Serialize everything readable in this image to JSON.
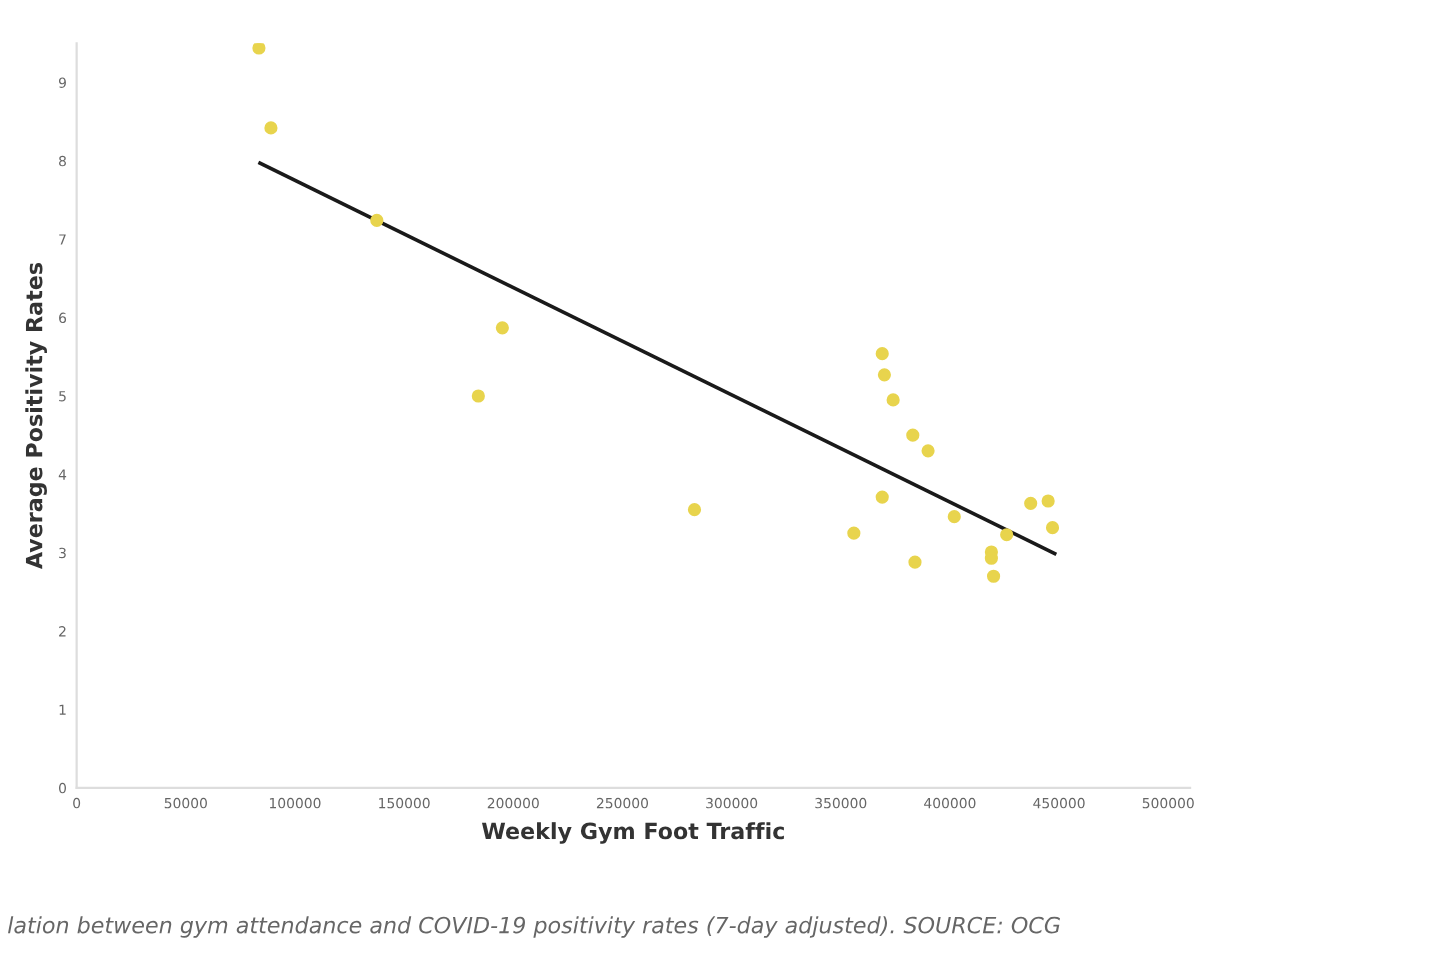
{
  "chart_data": {
    "type": "scatter",
    "xlabel": "Weekly Gym Foot Traffic",
    "ylabel": "Average Positivity Rates",
    "annotations": [
      "lation between gym attendance and COVID-19 positivity rates (7-day adjusted). SOURCE: OCG"
    ],
    "xlim": [
      0,
      510000
    ],
    "xticks": [
      0,
      50000,
      100000,
      150000,
      200000,
      250000,
      300000,
      350000,
      400000,
      450000,
      500000
    ],
    "ylim": [
      0,
      9.5
    ],
    "yticks": [
      0,
      1,
      2,
      3,
      4,
      5,
      6,
      7,
      8,
      9
    ],
    "grid": false,
    "series": [
      {
        "marker": "circle",
        "color": "#e8d44d",
        "x": [
          83500,
          89000,
          137500,
          195000,
          184000,
          283000,
          369000,
          370000,
          374000,
          383000,
          390000,
          369000,
          356000,
          384000,
          402000,
          426000,
          419000,
          419000,
          420000,
          437000,
          445000,
          447000
        ],
        "values": [
          9.44,
          8.42,
          7.24,
          5.87,
          5.0,
          3.55,
          5.54,
          5.27,
          4.95,
          4.5,
          4.3,
          3.71,
          3.25,
          2.88,
          3.46,
          3.23,
          3.01,
          2.93,
          2.7,
          3.63,
          3.66,
          3.32
        ]
      },
      {
        "type": "line",
        "color": "#1a1a1a",
        "x": [
          84000,
          448000
        ],
        "values": [
          7.97,
          2.99
        ]
      }
    ]
  }
}
